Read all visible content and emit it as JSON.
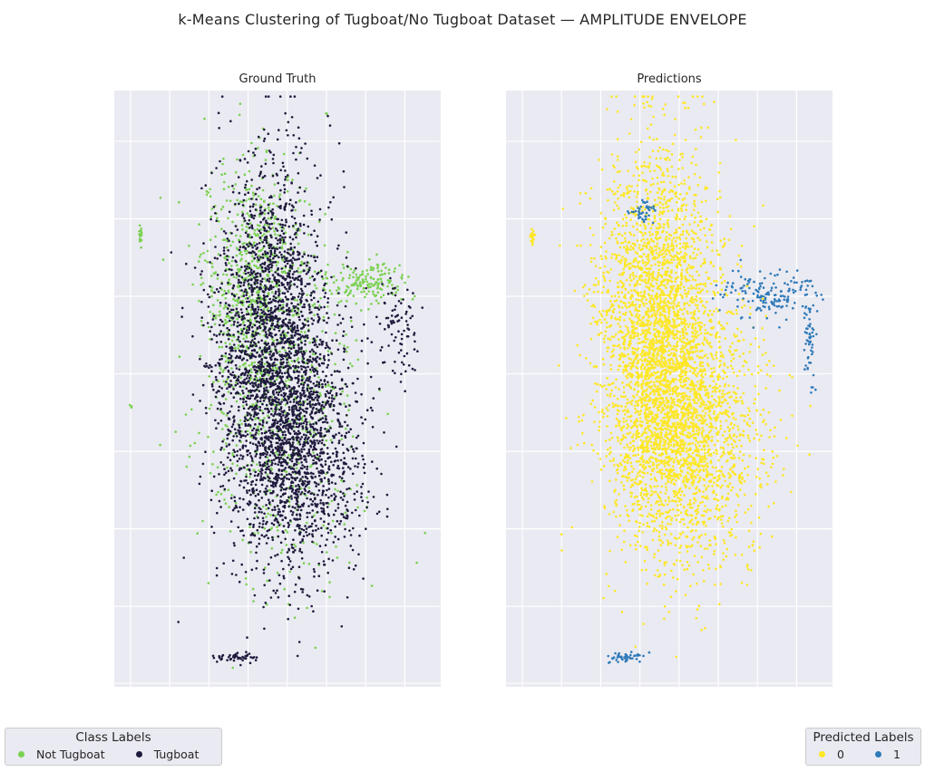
{
  "title": "k-Means Clustering of Tugboat/No Tugboat Dataset — AMPLITUDE ENVELOPE",
  "colors": {
    "background": "#eaeaf2",
    "grid": "#ffffff",
    "not_tugboat": "#7ad151",
    "tugboat": "#1f1a3d",
    "pred_0": "#fde725",
    "pred_1": "#2e7ab8"
  },
  "chart_data": [
    {
      "type": "scatter",
      "title": "Ground Truth",
      "xlabel": "",
      "ylabel": "",
      "grid": true,
      "tick_labels_visible": false,
      "xlim": [
        0,
        1
      ],
      "ylim": [
        0,
        1
      ],
      "legend": {
        "title": "Class Labels",
        "placement": "bottom-left",
        "entries": [
          {
            "label": "Not Tugboat",
            "color": "#7ad151"
          },
          {
            "label": "Tugboat",
            "color": "#1f1a3d"
          }
        ]
      },
      "series": [
        {
          "name": "Not Tugboat",
          "color": "#7ad151",
          "approx_points": 1600,
          "clusters": [
            {
              "cx": 0.43,
              "cy": 0.68,
              "sx": 0.08,
              "sy": 0.1,
              "n": 700
            },
            {
              "cx": 0.52,
              "cy": 0.45,
              "sx": 0.12,
              "sy": 0.14,
              "n": 600
            },
            {
              "cx": 0.78,
              "cy": 0.68,
              "sx": 0.06,
              "sy": 0.015,
              "n": 160
            },
            {
              "cx": 0.08,
              "cy": 0.755,
              "sx": 0.003,
              "sy": 0.008,
              "n": 20
            },
            {
              "cx": 0.05,
              "cy": 0.47,
              "sx": 0.002,
              "sy": 0.002,
              "n": 3
            },
            {
              "cx": 0.65,
              "cy": 0.96,
              "sx": 0.002,
              "sy": 0.002,
              "n": 2
            }
          ]
        },
        {
          "name": "Tugboat",
          "color": "#1f1a3d",
          "approx_points": 3600,
          "clusters": [
            {
              "cx": 0.48,
              "cy": 0.57,
              "sx": 0.09,
              "sy": 0.15,
              "n": 2200
            },
            {
              "cx": 0.57,
              "cy": 0.4,
              "sx": 0.1,
              "sy": 0.1,
              "n": 1200
            },
            {
              "cx": 0.87,
              "cy": 0.6,
              "sx": 0.03,
              "sy": 0.04,
              "n": 80
            },
            {
              "cx": 0.37,
              "cy": 0.05,
              "sx": 0.03,
              "sy": 0.004,
              "n": 45
            }
          ]
        }
      ]
    },
    {
      "type": "scatter",
      "title": "Predictions",
      "xlabel": "",
      "ylabel": "",
      "grid": true,
      "tick_labels_visible": false,
      "xlim": [
        0,
        1
      ],
      "ylim": [
        0,
        1
      ],
      "legend": {
        "title": "Predicted Labels",
        "placement": "bottom-right",
        "entries": [
          {
            "label": "0",
            "color": "#fde725"
          },
          {
            "label": "1",
            "color": "#2e7ab8"
          }
        ]
      },
      "series": [
        {
          "name": "0",
          "color": "#fde725",
          "approx_points": 5000,
          "clusters": [
            {
              "cx": 0.46,
              "cy": 0.6,
              "sx": 0.09,
              "sy": 0.15,
              "n": 2700
            },
            {
              "cx": 0.56,
              "cy": 0.42,
              "sx": 0.11,
              "sy": 0.11,
              "n": 1800
            },
            {
              "cx": 0.08,
              "cy": 0.755,
              "sx": 0.003,
              "sy": 0.008,
              "n": 20
            }
          ]
        },
        {
          "name": "1",
          "color": "#2e7ab8",
          "approx_points": 300,
          "clusters": [
            {
              "cx": 0.8,
              "cy": 0.66,
              "sx": 0.07,
              "sy": 0.02,
              "n": 150
            },
            {
              "cx": 0.93,
              "cy": 0.58,
              "sx": 0.01,
              "sy": 0.05,
              "n": 60
            },
            {
              "cx": 0.42,
              "cy": 0.8,
              "sx": 0.02,
              "sy": 0.01,
              "n": 40
            },
            {
              "cx": 0.37,
              "cy": 0.05,
              "sx": 0.03,
              "sy": 0.004,
              "n": 45
            }
          ]
        }
      ]
    }
  ]
}
